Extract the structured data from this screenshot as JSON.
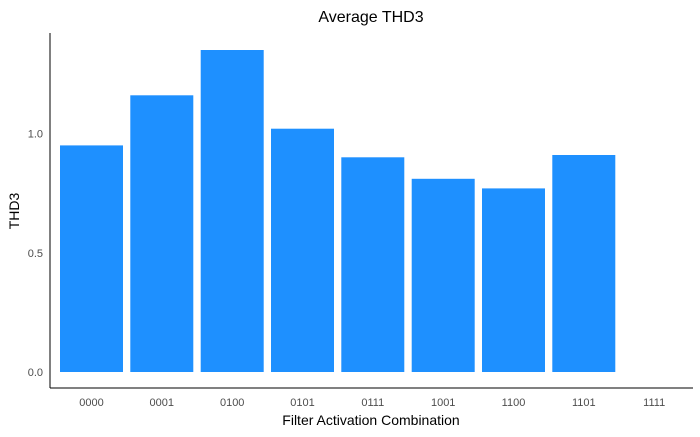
{
  "chart_data": {
    "type": "bar",
    "title": "Average THD3",
    "xlabel": "Filter Activation Combination",
    "ylabel": "THD3",
    "categories": [
      "0000",
      "0001",
      "0100",
      "0101",
      "0111",
      "1001",
      "1100",
      "1101",
      "1111"
    ],
    "values": [
      0.95,
      1.16,
      1.35,
      1.02,
      0.9,
      0.81,
      0.77,
      0.91,
      0
    ],
    "ylim": [
      0,
      1.35
    ],
    "yticks": [
      "0.0",
      "0.5",
      "1.0"
    ],
    "bar_color": "#1E90FF",
    "grid": false,
    "legend": "none"
  }
}
